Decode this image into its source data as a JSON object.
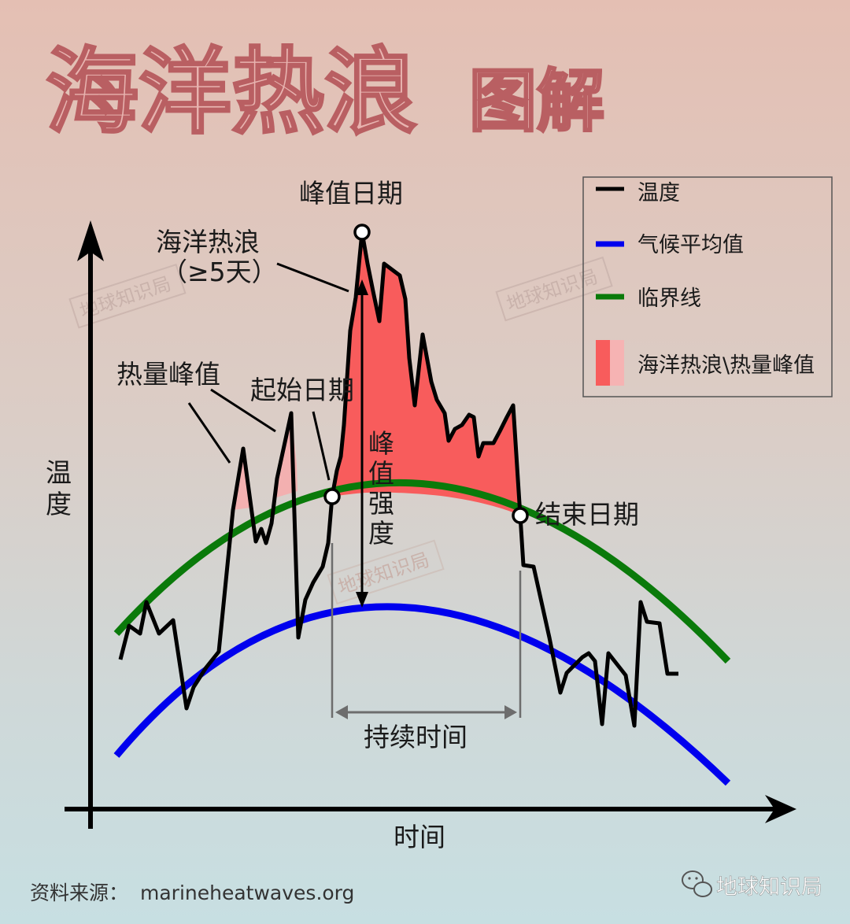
{
  "title": {
    "main": "海洋热浪",
    "sub": "图解"
  },
  "axes": {
    "y_label": "温度",
    "x_label": "时间"
  },
  "annotations": {
    "peak_date": "峰值日期",
    "heatwave_line1": "海洋热浪",
    "heatwave_line2": "（≥5天）",
    "heat_spike": "热量峰值",
    "start_date": "起始日期",
    "peak_intensity": "峰值强度",
    "end_date": "结束日期",
    "duration": "持续时间"
  },
  "legend": {
    "items": [
      {
        "label": "温度",
        "color": "#000000"
      },
      {
        "label": "气候平均值",
        "color": "#0000ee"
      },
      {
        "label": "临界线",
        "color": "#0a7a0a"
      },
      {
        "label": "海洋热浪\\热量峰值",
        "color": "#f85c5c",
        "secondary_color": "#f6b3b3"
      }
    ]
  },
  "watermark": "地球知识局",
  "footer": {
    "source_prefix": "资料来源：",
    "source_url": "marineheatwaves.org",
    "brand": "地球知识局",
    "brand_icon": "wechat-icon"
  },
  "colors": {
    "heatwave_fill": "#f85c5c",
    "spike_fill": "#f3b0b0",
    "temperature": "#000000",
    "climatology": "#0000ee",
    "threshold": "#0a7a0a"
  }
}
